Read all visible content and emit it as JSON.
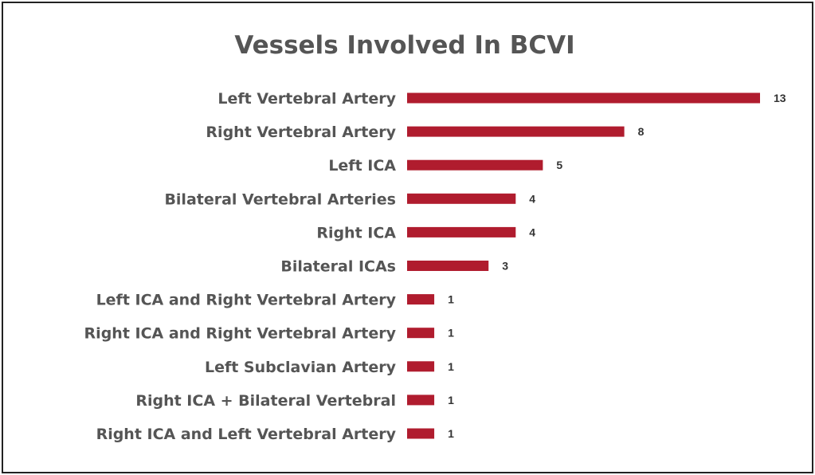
{
  "chart_data": {
    "type": "bar",
    "orientation": "horizontal",
    "title": "Vessels Involved In BCVI",
    "xlabel": "",
    "ylabel": "",
    "categories": [
      "Left Vertebral Artery",
      "Right Vertebral Artery",
      "Left ICA",
      "Bilateral Vertebral Arteries",
      "Right ICA",
      "Bilateral ICAs",
      "Left ICA and Right Vertebral Artery",
      "Right ICA and Right Vertebral Artery",
      "Left Subclavian Artery",
      "Right ICA +  Bilateral Vertebral",
      "Right ICA and Left Vertebral Artery"
    ],
    "values": [
      13,
      8,
      5,
      4,
      4,
      3,
      1,
      1,
      1,
      1,
      1
    ],
    "xlim": [
      0,
      13
    ],
    "grid": false,
    "legend": "none",
    "data_labels": true,
    "bar_color": "#b01c2e",
    "text_color": "#555555"
  }
}
